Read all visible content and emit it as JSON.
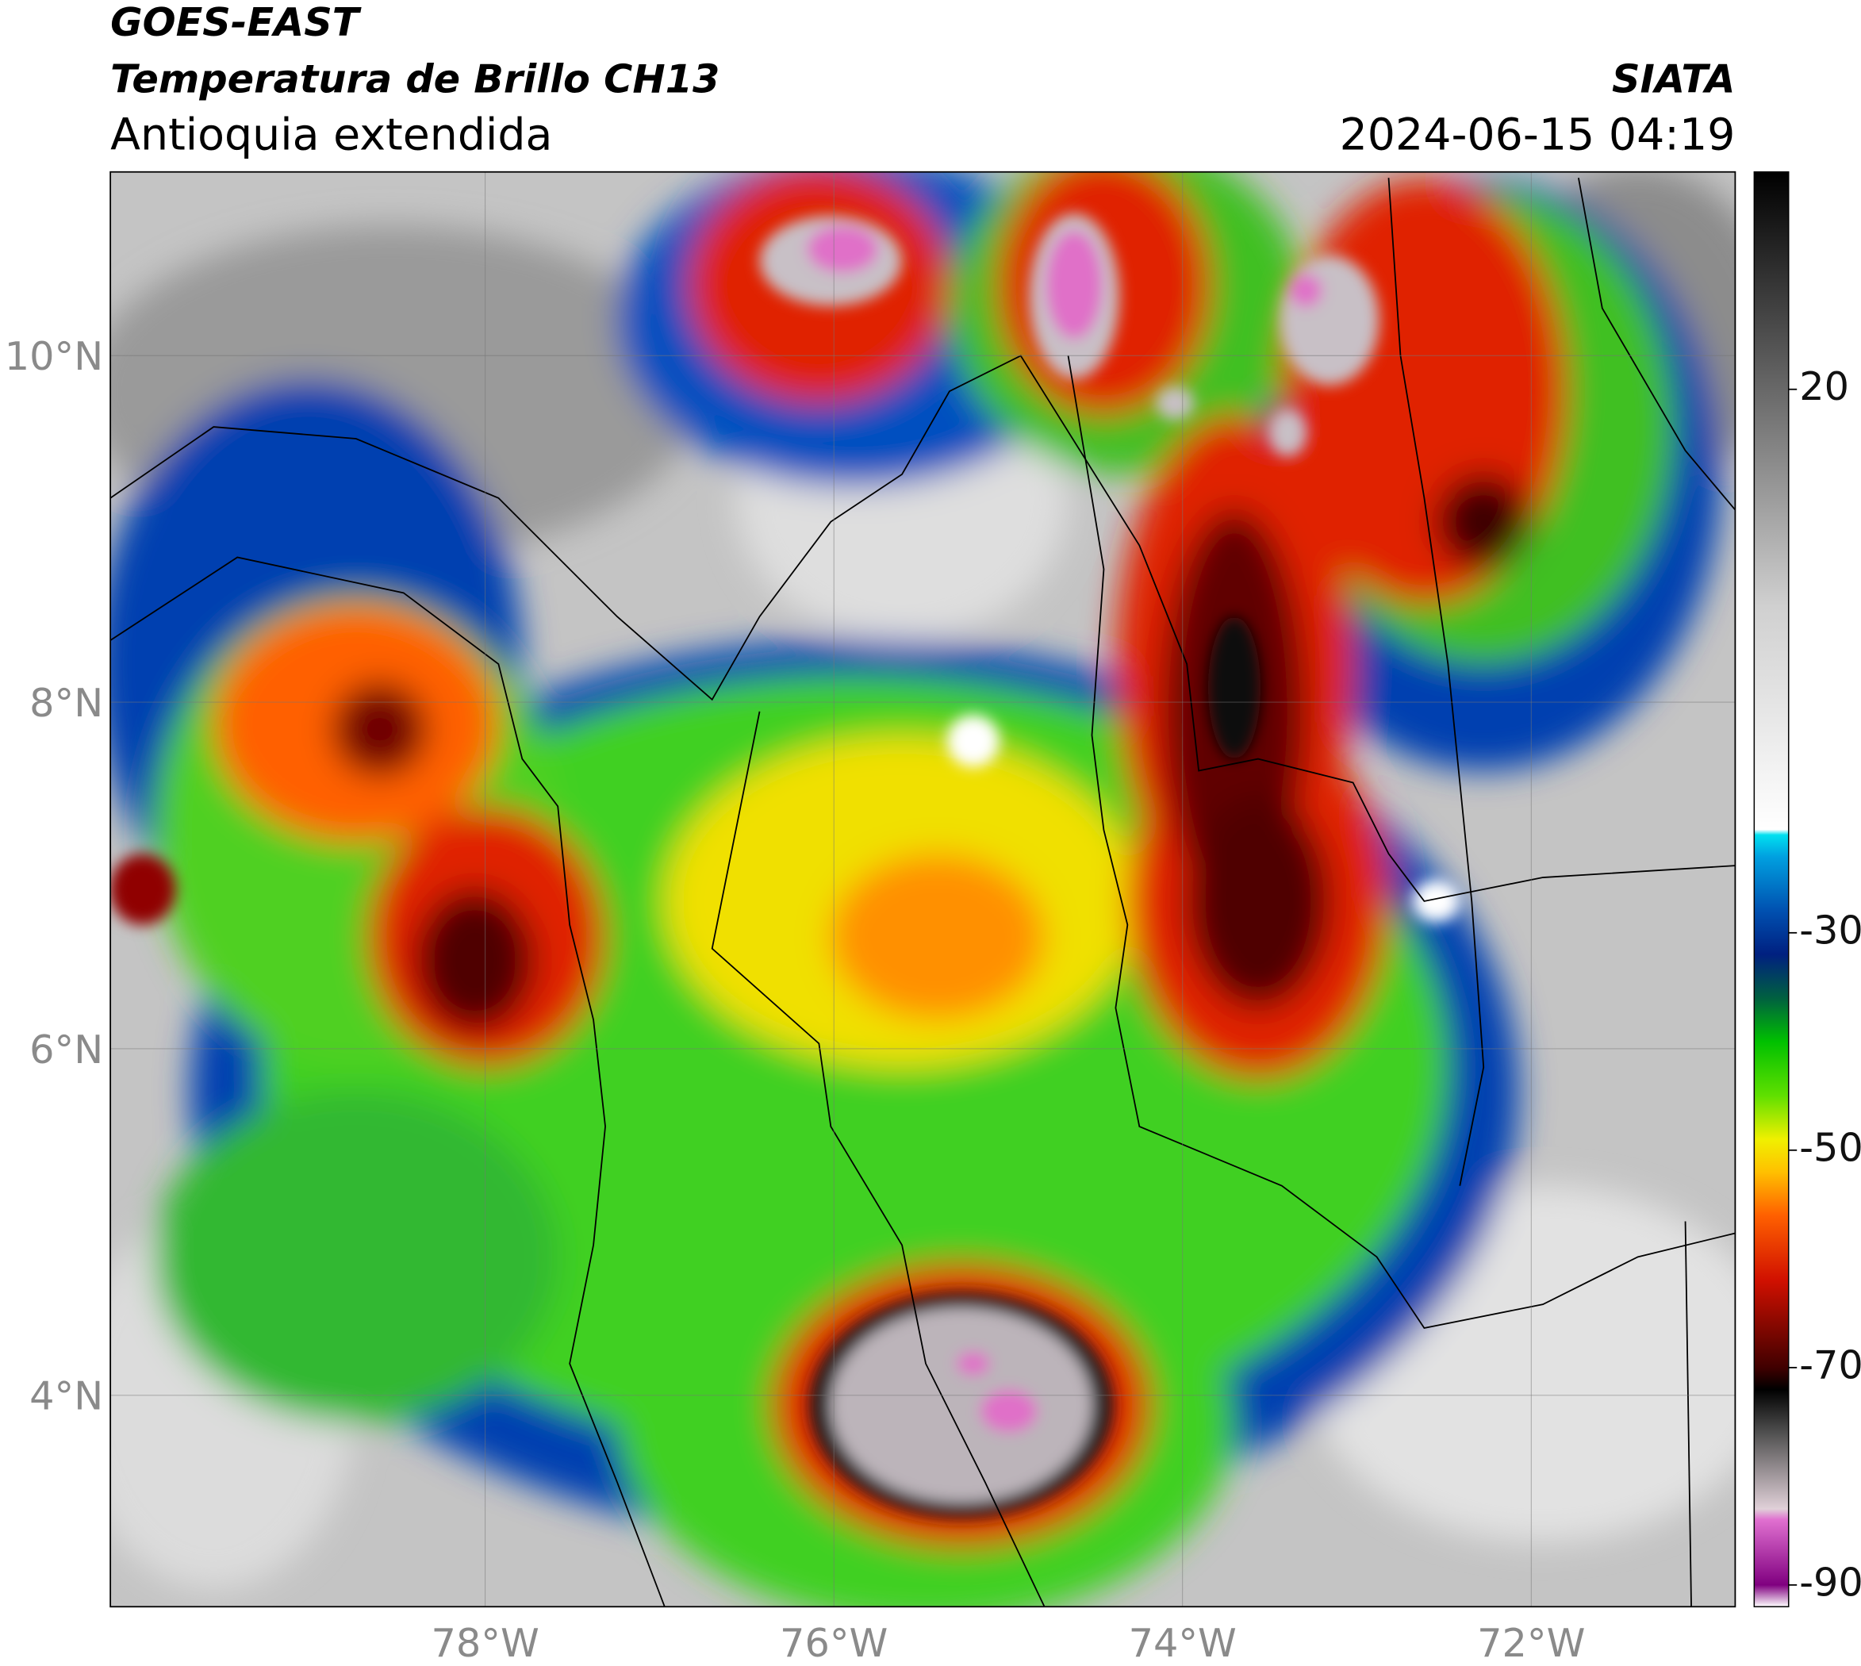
{
  "header": {
    "title_line1": "GOES-EAST",
    "title_line2": "Temperatura de Brillo CH13",
    "subtitle": "Antioquia extendida",
    "source": "SIATA",
    "datetime": "2024-06-15 04:19"
  },
  "map": {
    "xlim": [
      -80.15,
      -70.83
    ],
    "ylim": [
      2.78,
      11.06
    ],
    "grid": true,
    "xticks": [
      {
        "value": -78,
        "label": "78°W"
      },
      {
        "value": -76,
        "label": "76°W"
      },
      {
        "value": -74,
        "label": "74°W"
      },
      {
        "value": -72,
        "label": "72°W"
      }
    ],
    "yticks": [
      {
        "value": 10,
        "label": "10°N"
      },
      {
        "value": 8,
        "label": "8°N"
      },
      {
        "value": 6,
        "label": "6°N"
      },
      {
        "value": 4,
        "label": "4°N"
      }
    ]
  },
  "colorbar": {
    "lim": [
      -92,
      40
    ],
    "ticks": [
      20,
      -30,
      -50,
      -70,
      -90
    ],
    "colormap": [
      {
        "value": -92,
        "color": "#ffffff"
      },
      {
        "value": -90,
        "color": "#800080"
      },
      {
        "value": -84,
        "color": "#e070d0"
      },
      {
        "value": -83,
        "color": "#e0d0d8"
      },
      {
        "value": -76,
        "color": "#505050"
      },
      {
        "value": -72,
        "color": "#000000"
      },
      {
        "value": -70,
        "color": "#400000"
      },
      {
        "value": -62,
        "color": "#d01000"
      },
      {
        "value": -56,
        "color": "#ff6000"
      },
      {
        "value": -52,
        "color": "#ffc000"
      },
      {
        "value": -49,
        "color": "#f0f000"
      },
      {
        "value": -45,
        "color": "#60e000"
      },
      {
        "value": -40,
        "color": "#00c000"
      },
      {
        "value": -36,
        "color": "#006040"
      },
      {
        "value": -32,
        "color": "#002080"
      },
      {
        "value": -28,
        "color": "#0050b0"
      },
      {
        "value": -23,
        "color": "#00a0e0"
      },
      {
        "value": -21,
        "color": "#00e0f0"
      },
      {
        "value": -20.5,
        "color": "#ffffff"
      },
      {
        "value": 0,
        "color": "#d0d0d0"
      },
      {
        "value": 40,
        "color": "#000000"
      }
    ]
  }
}
